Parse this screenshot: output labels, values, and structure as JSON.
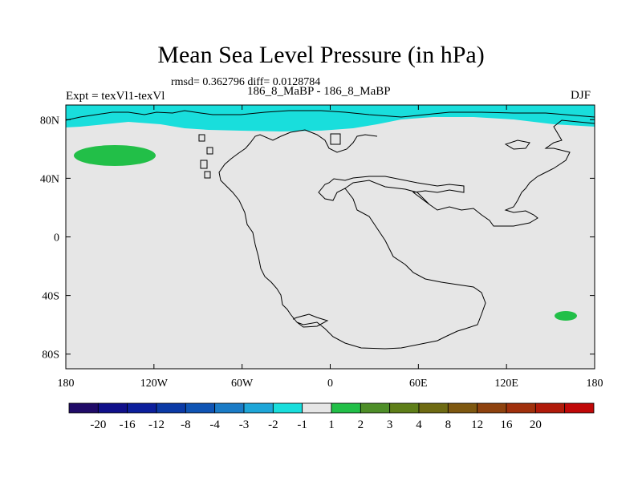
{
  "chart_data": {
    "type": "map",
    "title": "Mean Sea Level Pressure (in hPa)",
    "stats": "rmsd= 0.362796 diff= 0.0128784",
    "left_label": "Expt = texVl1-texVl",
    "center_label": "186_8_MaBP - 186_8_MaBP",
    "right_label": "DJF",
    "x_ticks": [
      "180",
      "120W",
      "60W",
      "0",
      "60E",
      "120E",
      "180"
    ],
    "x_tick_values": [
      -180,
      -120,
      -60,
      0,
      60,
      120,
      180
    ],
    "y_ticks": [
      "80N",
      "40N",
      "0",
      "40S",
      "80S"
    ],
    "y_tick_values": [
      80,
      40,
      0,
      -40,
      -80
    ],
    "xlim": [
      -180,
      180
    ],
    "ylim": [
      -90,
      90
    ],
    "colorbar_labels": [
      "-20",
      "-16",
      "-12",
      "-8",
      "-4",
      "-3",
      "-2",
      "-1",
      "1",
      "2",
      "3",
      "4",
      "8",
      "12",
      "16",
      "20"
    ],
    "colorbar_colors": [
      "#200b68",
      "#10108a",
      "#0c1f9c",
      "#0b3aa6",
      "#0f54b4",
      "#1a7bc6",
      "#1ea6d8",
      "#19dedc",
      "#e6e6e6",
      "#22bf48",
      "#4e8e28",
      "#5e7e18",
      "#6e6a12",
      "#7e5810",
      "#8e420e",
      "#a0300c",
      "#b01a0a",
      "#c00808"
    ],
    "background_color": "#e6e6e6",
    "regions": [
      {
        "name": "arctic-negative-anomaly",
        "bin": "-2 to -1",
        "color": "#19dedc"
      },
      {
        "name": "north-pacific-positive-anomaly",
        "bin": "1 to 2",
        "color": "#22bf48"
      },
      {
        "name": "south-pacific-positive-anomaly",
        "bin": "1 to 2",
        "color": "#22bf48"
      }
    ]
  }
}
